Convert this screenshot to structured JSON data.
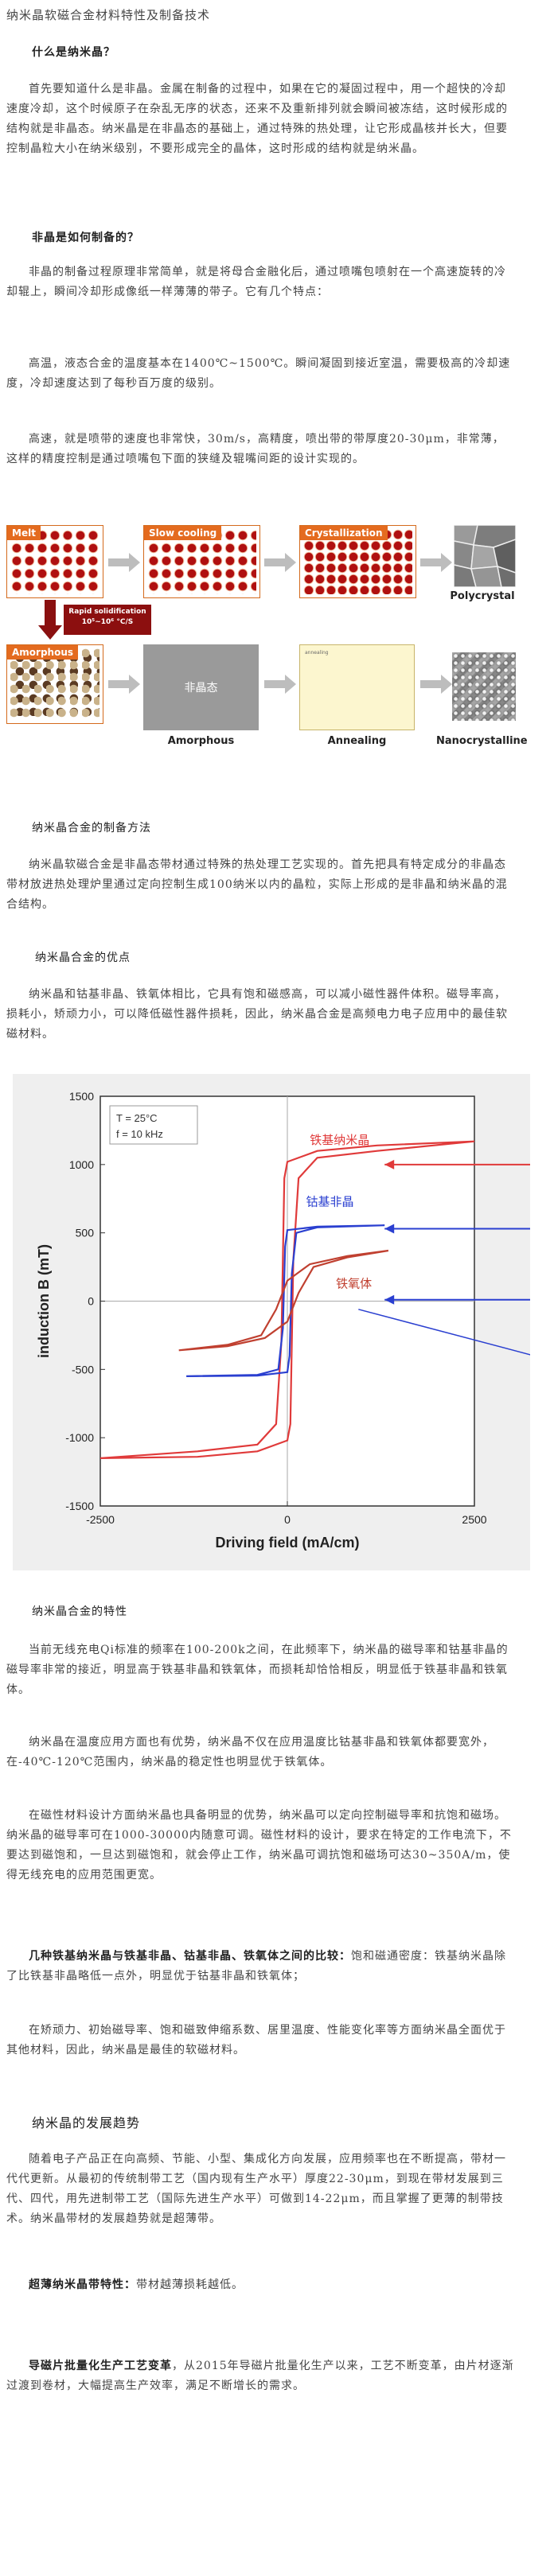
{
  "page": {
    "title": "纳米晶软磁合金材料特性及制备技术"
  },
  "sections": {
    "s1_heading": "什么是纳米晶？",
    "s1_p1": "首先要知道什么是非晶。金属在制备的过程中，如果在它的凝固过程中，用一个超快的冷却速度冷却，这个时候原子在杂乱无序的状态，还来不及重新排列就会瞬间被冻结，这时候形成的结构就是非晶态。纳米晶是在非晶态的基础上，通过特殊的热处理，让它形成晶核并长大，但要控制晶粒大小在纳米级别，不要形成完全的晶体，这时形成的结构就是纳米晶。",
    "s2_heading": "非晶是如何制备的？",
    "s2_p1": "非晶的制备过程原理非常简单，就是将母合金融化后，通过喷嘴包喷射在一个高速旋转的冷却辊上，瞬间冷却形成像纸一样薄薄的带子。它有几个特点：",
    "s2_p2": "高温，液态合金的温度基本在1400℃~1500℃。瞬间凝固到接近室温，需要极高的冷却速度，冷却速度达到了每秒百万度的级别。",
    "s2_p3": "高速，就是喷带的速度也非常快，30m/s，高精度，喷出带的带厚度20-30μm，非常薄，这样的精度控制是通过喷嘴包下面的狭缝及辊嘴间距的设计实现的。",
    "s3_heading": "纳米晶合金的制备方法",
    "s3_p1": "纳米晶软磁合金是非晶态带材通过特殊的热处理工艺实现的。首先把具有特定成分的非晶态带材放进热处理炉里通过定向控制生成100纳米以内的晶粒，实际上形成的是非晶和纳米晶的混合结构。",
    "s4_heading": "纳米晶合金的优点",
    "s4_p1": "纳米晶和钴基非晶、铁氧体相比，它具有饱和磁感高，可以减小磁性器件体积。磁导率高，损耗小，矫顽力小，可以降低磁性器件损耗，因此，纳米晶合金是高频电力电子应用中的最佳软磁材料。",
    "s5_heading": "纳米晶合金的特性",
    "s5_p1": "当前无线充电Qi标准的频率在100-200k之间，在此频率下，纳米晶的磁导率和钴基非晶的磁导率非常的接近，明显高于铁基非晶和铁氧体，而损耗却恰恰相反，明显低于铁基非晶和铁氧体。",
    "s5_p2": "纳米晶在温度应用方面也有优势，纳米晶不仅在应用温度比钴基非晶和铁氧体都要宽外，在-40℃-120℃范围内，纳米晶的稳定性也明显优于铁氧体。",
    "s5_p3": "在磁性材料设计方面纳米晶也具备明显的优势，纳米晶可以定向控制磁导率和抗饱和磁场。纳米晶的磁导率可在1000-30000内随意可调。磁性材料的设计，要求在特定的工作电流下，不要达到磁饱和，一旦达到磁饱和，就会停止工作，纳米晶可调抗饱和磁场可达30~350A/m，使得无线充电的应用范围更宽。",
    "s5_p4_lead": "几种铁基纳米晶与铁基非晶、钴基非晶、铁氧体之间的比较：",
    "s5_p4_rest": "饱和磁通密度：铁基纳米晶除了比铁基非晶略低一点外，明显优于钴基非晶和铁氧体；",
    "s5_p5": "在矫顽力、初始磁导率、饱和磁致伸缩系数、居里温度、性能变化率等方面纳米晶全面优于其他材料，因此，纳米晶是最佳的软磁材料。",
    "s6_heading": "纳米晶的发展趋势",
    "s6_p1": "随着电子产品正在向高频、节能、小型、集成化方向发展，应用频率也在不断提高，带材一代代更新。从最初的传统制带工艺（国内现有生产水平）厚度22-30μm，到现在带材发展到三代、四代，用先进制带工艺（国际先进生产水平）可做到14-22μm，而且掌握了更薄的制带技术。纳米晶带材的发展趋势就是超薄带。",
    "s6_p2_lead": "超薄纳米晶带特性：",
    "s6_p2_rest": "带材越薄损耗越低。",
    "s7_p1_lead": "导磁片批量化生产工艺变革",
    "s7_p1_rest": "，从2015年导磁片批量化生产以来，工艺不断变革，由片材逐渐过渡到卷材，大幅提高生产效率，满足不断增长的需求。"
  },
  "figure1": {
    "melt": "Melt",
    "slow_cooling": "Slow cooling",
    "crystallization": "Crystallization",
    "polycrystal": "Polycrystal",
    "rapid_solid": "Rapid solidification",
    "rapid_rate": "10⁵~10⁶ °C/S",
    "amorphous_label": "Amorphous",
    "amorphous_state": "非晶态",
    "amorphous_cap": "Amorphous",
    "annealing_cap": "Annealing",
    "annealing_inner": "annealing",
    "nano_cap": "Nanocrystalline"
  },
  "chart_data": {
    "type": "line",
    "title": "",
    "xlabel": "Driving field (mA/cm)",
    "ylabel": "induction B (mT)",
    "xlim": [
      -2500,
      2500
    ],
    "ylim": [
      -1500,
      1500
    ],
    "xticks": [
      -2500,
      0,
      2500
    ],
    "yticks": [
      -1500,
      -1000,
      -500,
      0,
      500,
      1000,
      1500
    ],
    "annotation": [
      "T = 25°C",
      "f = 10 kHz"
    ],
    "series": [
      {
        "name": "铁基纳米晶",
        "color": "#e03a3a",
        "upper": [
          [
            -2500,
            -1150
          ],
          [
            -1200,
            -1100
          ],
          [
            -400,
            -1050
          ],
          [
            -150,
            -900
          ],
          [
            -80,
            -300
          ],
          [
            -40,
            900
          ],
          [
            0,
            1020
          ],
          [
            400,
            1100
          ],
          [
            1200,
            1140
          ],
          [
            2500,
            1170
          ]
        ],
        "lower": [
          [
            2500,
            1170
          ],
          [
            1200,
            1100
          ],
          [
            400,
            1050
          ],
          [
            150,
            900
          ],
          [
            80,
            300
          ],
          [
            40,
            -900
          ],
          [
            0,
            -1020
          ],
          [
            -400,
            -1100
          ],
          [
            -1200,
            -1140
          ],
          [
            -2500,
            -1150
          ]
        ]
      },
      {
        "name": "钴基非晶",
        "color": "#2a3fd0",
        "upper": [
          [
            -1350,
            -550
          ],
          [
            -400,
            -540
          ],
          [
            -120,
            -500
          ],
          [
            -60,
            -200
          ],
          [
            -30,
            400
          ],
          [
            0,
            520
          ],
          [
            400,
            545
          ],
          [
            1300,
            555
          ]
        ],
        "lower": [
          [
            1300,
            555
          ],
          [
            400,
            540
          ],
          [
            120,
            500
          ],
          [
            60,
            200
          ],
          [
            30,
            -400
          ],
          [
            0,
            -520
          ],
          [
            -400,
            -545
          ],
          [
            -1350,
            -550
          ]
        ]
      },
      {
        "name": "铁氧体",
        "color": "#c04030",
        "upper": [
          [
            -1450,
            -360
          ],
          [
            -800,
            -320
          ],
          [
            -350,
            -250
          ],
          [
            -150,
            -60
          ],
          [
            0,
            150
          ],
          [
            300,
            270
          ],
          [
            800,
            330
          ],
          [
            1350,
            370
          ]
        ],
        "lower": [
          [
            1350,
            370
          ],
          [
            800,
            320
          ],
          [
            350,
            250
          ],
          [
            150,
            60
          ],
          [
            0,
            -150
          ],
          [
            -300,
            -270
          ],
          [
            -800,
            -330
          ],
          [
            -1450,
            -360
          ]
        ]
      }
    ],
    "legend": "inline-labels"
  }
}
